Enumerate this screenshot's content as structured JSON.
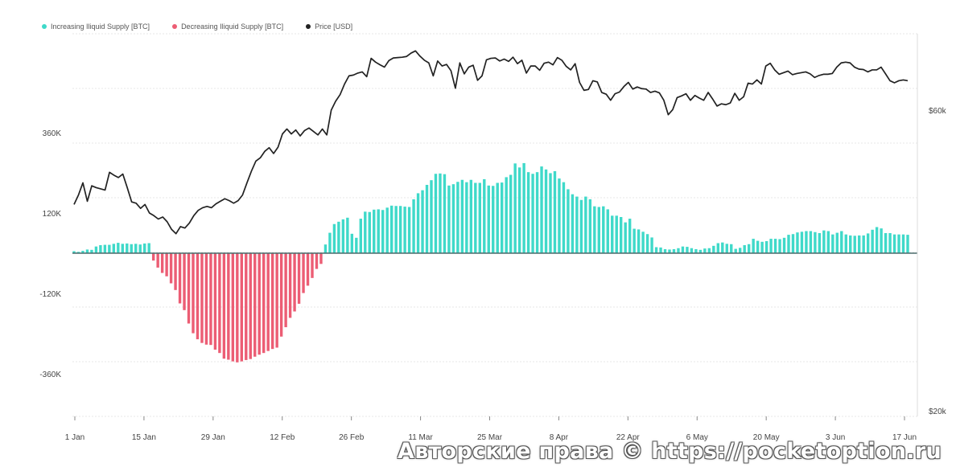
{
  "colors": {
    "increasing": "#3fd9c9",
    "decreasing": "#ec5d74",
    "price": "#222222",
    "grid": "#e7e7e7",
    "zero": "#4a6b6b"
  },
  "watermark": "Авторские права © https://pocketoption.ru",
  "chart_data": {
    "type": "bar+line",
    "legend": [
      {
        "name": "Increasing Iliquid Supply [BTC]",
        "color": "#3fd9c9"
      },
      {
        "name": "Decreasing Iliquid Supply [BTC]",
        "color": "#ec5d74"
      },
      {
        "name": "Price [USD]",
        "color": "#222222"
      }
    ],
    "legend_position": "top-left",
    "x_ticks": [
      "1 Jan",
      "15 Jan",
      "29 Jan",
      "12 Feb",
      "26 Feb",
      "11 Mar",
      "25 Mar",
      "8 Apr",
      "22 Apr",
      "6 May",
      "20 May",
      "3 Jun",
      "17 Jun"
    ],
    "y_left_ticks": [
      "360K",
      "120K",
      "-120K",
      "-360K"
    ],
    "y_left_tick_values": [
      360,
      120,
      -120,
      -360
    ],
    "y_right_ticks": [
      "$60k",
      "$20k"
    ],
    "y_right_tick_values": [
      60000,
      20000
    ],
    "y_right_scale": "log",
    "grid": true,
    "supply_change_kBTC": [
      6,
      4,
      7,
      11,
      10,
      20,
      24,
      25,
      25,
      28,
      31,
      28,
      29,
      27,
      28,
      26,
      29,
      30,
      -22,
      -43,
      -59,
      -69,
      -90,
      -110,
      -150,
      -170,
      -210,
      -239,
      -257,
      -268,
      -273,
      -274,
      -288,
      -298,
      -315,
      -318,
      -323,
      -326,
      -323,
      -319,
      -316,
      -309,
      -303,
      -298,
      -292,
      -286,
      -282,
      -249,
      -221,
      -193,
      -174,
      -151,
      -119,
      -97,
      -74,
      -47,
      -32,
      26,
      61,
      87,
      94,
      101,
      106,
      58,
      46,
      103,
      124,
      123,
      130,
      131,
      129,
      136,
      142,
      141,
      141,
      139,
      138,
      161,
      179,
      188,
      204,
      218,
      237,
      238,
      236,
      202,
      206,
      213,
      219,
      212,
      219,
      210,
      210,
      221,
      202,
      201,
      210,
      211,
      227,
      234,
      268,
      256,
      269,
      242,
      237,
      242,
      259,
      250,
      239,
      245,
      223,
      212,
      191,
      176,
      169,
      159,
      169,
      161,
      140,
      138,
      140,
      131,
      112,
      112,
      108,
      92,
      103,
      73,
      71,
      64,
      57,
      47,
      18,
      17,
      12,
      11,
      12,
      15,
      20,
      19,
      15,
      12,
      10,
      14,
      15,
      22,
      30,
      32,
      28,
      27,
      13,
      16,
      24,
      27,
      43,
      37,
      34,
      36,
      43,
      43,
      42,
      46,
      55,
      57,
      62,
      64,
      66,
      66,
      63,
      60,
      68,
      66,
      56,
      61,
      66,
      56,
      53,
      52,
      53,
      53,
      59,
      70,
      78,
      74,
      60,
      60,
      56,
      56,
      56,
      55
    ],
    "price_usd": [
      42500,
      44000,
      46000,
      43000,
      45500,
      45200,
      45000,
      44800,
      47800,
      47300,
      46900,
      47500,
      45200,
      42900,
      42700,
      41900,
      42500,
      41200,
      40800,
      40300,
      40600,
      39900,
      38800,
      38200,
      39200,
      39000,
      39700,
      40800,
      41600,
      42000,
      42200,
      42000,
      42600,
      43000,
      43400,
      43100,
      42700,
      43100,
      44000,
      46000,
      48000,
      49800,
      50400,
      51600,
      52300,
      51200,
      52400,
      55000,
      56000,
      55000,
      55800,
      54600,
      55700,
      56200,
      55500,
      54800,
      56000,
      54800,
      60000,
      62000,
      63500,
      66000,
      68000,
      68200,
      68700,
      69000,
      67800,
      72500,
      71500,
      70800,
      70200,
      71900,
      72600,
      72700,
      72800,
      73000,
      73900,
      74500,
      73100,
      72000,
      71300,
      68000,
      71800,
      70500,
      70900,
      69300,
      65000,
      71300,
      68500,
      70200,
      70700,
      66900,
      68000,
      72100,
      72500,
      72600,
      71800,
      72300,
      71700,
      72800,
      71100,
      72000,
      68700,
      70500,
      70500,
      69400,
      71200,
      71500,
      70800,
      72700,
      72000,
      70400,
      69500,
      71100,
      66400,
      64500,
      64700,
      66800,
      66500,
      64000,
      63600,
      62200,
      63700,
      64100,
      65400,
      66400,
      64800,
      65300,
      64900,
      64800,
      64000,
      64300,
      63900,
      62200,
      59000,
      60100,
      62800,
      63200,
      63700,
      62200,
      63300,
      62700,
      62200,
      64000,
      62500,
      60900,
      61400,
      61200,
      61600,
      63800,
      62200,
      63000,
      66200,
      66000,
      67000,
      66000,
      70500,
      71200,
      69500,
      68400,
      68800,
      69200,
      68300,
      68600,
      68800,
      69000,
      68500,
      67600,
      68100,
      68400,
      68400,
      68600,
      70200,
      71300,
      71500,
      71300,
      70200,
      69700,
      69600,
      69000,
      69500,
      69500,
      70200,
      68500,
      66800,
      66300,
      66800,
      67000,
      66800
    ]
  }
}
